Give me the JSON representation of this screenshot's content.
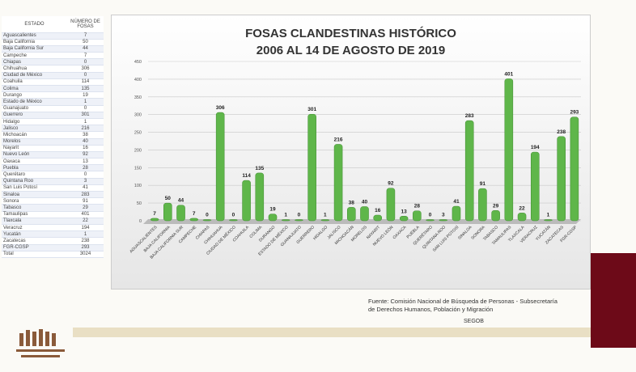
{
  "table": {
    "headers": [
      "ESTADO",
      "NÚMERO DE FOSAS"
    ],
    "rows": [
      [
        "Aguascalientes",
        "7"
      ],
      [
        "Baja California",
        "50"
      ],
      [
        "Baja California Sur",
        "44"
      ],
      [
        "Campeche",
        "7"
      ],
      [
        "Chiapas",
        "0"
      ],
      [
        "Chihuahua",
        "306"
      ],
      [
        "Ciudad de México",
        "0"
      ],
      [
        "Coahuila",
        "114"
      ],
      [
        "Colima",
        "135"
      ],
      [
        "Durango",
        "19"
      ],
      [
        "Estado de México",
        "1"
      ],
      [
        "Guanajuato",
        "0"
      ],
      [
        "Guerrero",
        "301"
      ],
      [
        "Hidalgo",
        "1"
      ],
      [
        "Jalisco",
        "216"
      ],
      [
        "Michoacán",
        "38"
      ],
      [
        "Morelos",
        "40"
      ],
      [
        "Nayarit",
        "16"
      ],
      [
        "Nuevo León",
        "92"
      ],
      [
        "Oaxaca",
        "13"
      ],
      [
        "Puebla",
        "28"
      ],
      [
        "Querétaro",
        "0"
      ],
      [
        "Quintana Roo",
        "3"
      ],
      [
        "San Luis Potosí",
        "41"
      ],
      [
        "Sinaloa",
        "283"
      ],
      [
        "Sonora",
        "91"
      ],
      [
        "Tabasco",
        "29"
      ],
      [
        "Tamaulipas",
        "401"
      ],
      [
        "Tlaxcala",
        "22"
      ],
      [
        "Veracruz",
        "194"
      ],
      [
        "Yucatán",
        "1"
      ],
      [
        "Zacatecas",
        "238"
      ],
      [
        "FGR-CGSP",
        "293"
      ],
      [
        "Total",
        "3024"
      ]
    ]
  },
  "chart_data": {
    "type": "bar",
    "title": "FOSAS CLANDESTINAS HISTÓRICO",
    "subtitle": "2006 AL 14 DE AGOSTO DE 2019",
    "categories": [
      "AGUASCALIENTES",
      "BAJA CALIFORNIA",
      "BAJA CALIFORNIA SUR",
      "CAMPECHE",
      "CHIAPAS",
      "CHIHUAHUA",
      "CIUDAD DE MÉXICO",
      "COAHUILA",
      "COLIMA",
      "DURANGO",
      "ESTADO DE MÉXICO",
      "GUANAJUATO",
      "GUERRERO",
      "HIDALGO",
      "JALISCO",
      "MICHOACÁN",
      "MORELOS",
      "NAYARIT",
      "NUEVO LEÓN",
      "OAXACA",
      "PUEBLA",
      "QUERÉTARO",
      "QUINTANA ROO",
      "SAN LUIS POTOSÍ",
      "SINALOA",
      "SONORA",
      "TABASCO",
      "TAMAULIPAS",
      "TLAXCALA",
      "VERACRUZ",
      "YUCATÁN",
      "ZACATECAS",
      "FGR-CGSP"
    ],
    "values": [
      7,
      50,
      44,
      7,
      0,
      306,
      0,
      114,
      135,
      19,
      1,
      0,
      301,
      1,
      216,
      38,
      40,
      16,
      92,
      13,
      28,
      0,
      3,
      41,
      283,
      91,
      29,
      401,
      22,
      194,
      1,
      238,
      293
    ],
    "ylim": [
      0,
      450
    ],
    "yticks": [
      0,
      50,
      100,
      150,
      200,
      250,
      300,
      350,
      400,
      450
    ],
    "grid": true,
    "color": "#5fb64a"
  },
  "footer": {
    "source": "Fuente: Comisión Nacional de Búsqueda de Personas - Subsecretaría",
    "source2": "de Derechos Humanos, Población y Migración",
    "org": "SEGOB"
  }
}
